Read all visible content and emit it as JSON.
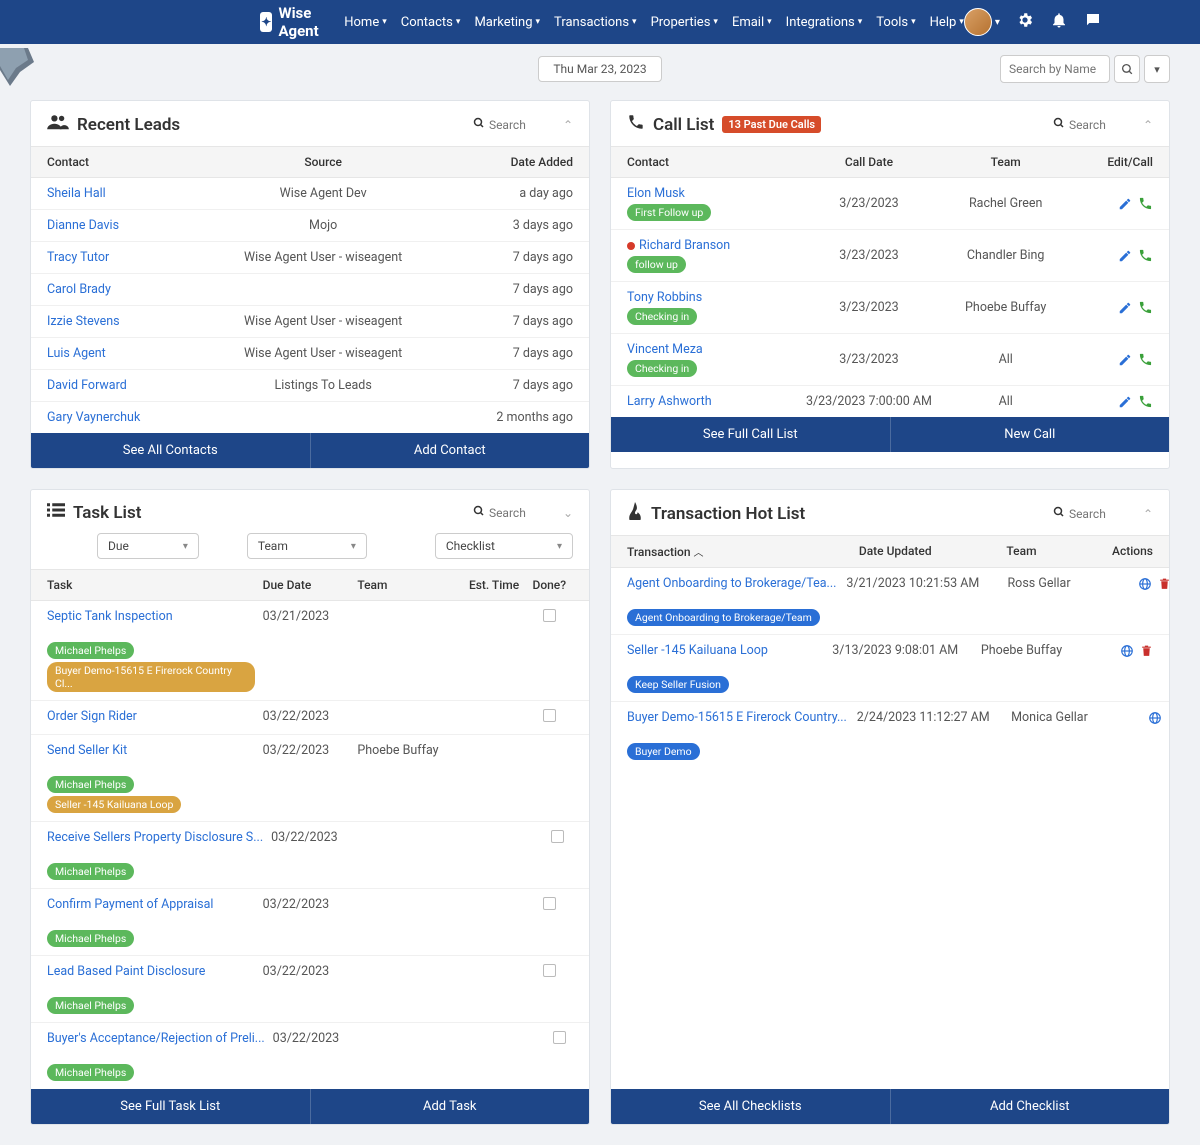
{
  "brand": "Wise Agent",
  "nav": {
    "items": [
      "Home",
      "Contacts",
      "Marketing",
      "Transactions",
      "Properties",
      "Email",
      "Integrations",
      "Tools",
      "Help"
    ]
  },
  "subbar": {
    "date": "Thu Mar 23, 2023",
    "search_placeholder": "Search by Name"
  },
  "panels": {
    "leads": {
      "title": "Recent Leads",
      "search_placeholder": "Search",
      "cols": [
        "Contact",
        "Source",
        "Date Added"
      ],
      "rows": [
        {
          "name": "Sheila Hall",
          "source": "Wise Agent Dev",
          "date": "a day ago"
        },
        {
          "name": "Dianne Davis",
          "source": "Mojo",
          "date": "3 days ago"
        },
        {
          "name": "Tracy Tutor",
          "source": "Wise Agent User - wiseagent",
          "date": "7 days ago"
        },
        {
          "name": "Carol Brady",
          "source": "",
          "date": "7 days ago"
        },
        {
          "name": "Izzie Stevens",
          "source": "Wise Agent User - wiseagent",
          "date": "7 days ago"
        },
        {
          "name": "Luis Agent",
          "source": "Wise Agent User - wiseagent",
          "date": "7 days ago"
        },
        {
          "name": "David Forward",
          "source": "Listings To Leads",
          "date": "7 days ago"
        },
        {
          "name": "Gary Vaynerchuk",
          "source": "",
          "date": "2 months ago"
        }
      ],
      "footer": [
        "See All Contacts",
        "Add Contact"
      ]
    },
    "calls": {
      "title": "Call List",
      "badge": "13 Past Due Calls",
      "search_placeholder": "Search",
      "cols": [
        "Contact",
        "Call Date",
        "Team",
        "Edit/Call"
      ],
      "rows": [
        {
          "name": "Elon Musk",
          "tag": "First Follow up",
          "tag_color": "green",
          "date": "3/23/2023",
          "team": "Rachel Green",
          "dot": false
        },
        {
          "name": "Richard Branson",
          "tag": "follow up",
          "tag_color": "green",
          "date": "3/23/2023",
          "team": "Chandler Bing",
          "dot": true
        },
        {
          "name": "Tony Robbins",
          "tag": "Checking in",
          "tag_color": "green",
          "date": "3/23/2023",
          "team": "Phoebe Buffay",
          "dot": false
        },
        {
          "name": "Vincent Meza",
          "tag": "Checking in",
          "tag_color": "green",
          "date": "3/23/2023",
          "team": "All",
          "dot": false
        },
        {
          "name": "Larry Ashworth",
          "tag": "",
          "date": "3/23/2023 7:00:00 AM",
          "team": "All",
          "dot": false
        }
      ],
      "footer": [
        "See Full Call List",
        "New Call"
      ]
    },
    "tasks": {
      "title": "Task List",
      "search_placeholder": "Search",
      "filters": [
        "Due",
        "Team",
        "Checklist"
      ],
      "cols": [
        "Task",
        "Due Date",
        "Team",
        "Est. Time",
        "Done?"
      ],
      "rows": [
        {
          "task": "Septic Tank Inspection",
          "due": "03/21/2023",
          "team": "",
          "tags": [
            {
              "t": "Michael Phelps",
              "c": "green"
            },
            {
              "t": "Buyer Demo-15615 E Firerock Country Cl...",
              "c": "orange"
            }
          ],
          "checkbox": true
        },
        {
          "task": "Order Sign Rider",
          "due": "03/22/2023",
          "team": "",
          "tags": [],
          "checkbox": true
        },
        {
          "task": "Send Seller Kit",
          "due": "03/22/2023",
          "team": "Phoebe Buffay",
          "tags": [
            {
              "t": "Michael Phelps",
              "c": "green"
            },
            {
              "t": "Seller -145 Kailuana Loop",
              "c": "orange"
            }
          ],
          "checkbox": false
        },
        {
          "task": "Receive Sellers Property Disclosure S...",
          "due": "03/22/2023",
          "team": "",
          "tags": [
            {
              "t": "Michael Phelps",
              "c": "green"
            }
          ],
          "checkbox": true
        },
        {
          "task": "Confirm Payment of Appraisal",
          "due": "03/22/2023",
          "team": "",
          "tags": [
            {
              "t": "Michael Phelps",
              "c": "green"
            }
          ],
          "checkbox": true
        },
        {
          "task": "Lead Based Paint Disclosure",
          "due": "03/22/2023",
          "team": "",
          "tags": [
            {
              "t": "Michael Phelps",
              "c": "green"
            }
          ],
          "checkbox": true
        },
        {
          "task": "Buyer's Acceptance/Rejection of Preli...",
          "due": "03/22/2023",
          "team": "",
          "tags": [
            {
              "t": "Michael Phelps",
              "c": "green"
            }
          ],
          "checkbox": true
        }
      ],
      "footer": [
        "See Full Task List",
        "Add Task"
      ]
    },
    "tx": {
      "title": "Transaction Hot List",
      "search_placeholder": "Search",
      "cols": [
        "Transaction",
        "Date Updated",
        "Team",
        "Actions"
      ],
      "sort_arrow": "︿",
      "rows": [
        {
          "name": "Agent Onboarding to Brokerage/Tea...",
          "tag": "Agent Onboarding to Brokerage/Team",
          "date": "3/21/2023 10:21:53 AM",
          "team": "Ross Gellar"
        },
        {
          "name": "Seller -145 Kailuana Loop",
          "tag": "Keep Seller Fusion",
          "date": "3/13/2023 9:08:01 AM",
          "team": "Phoebe Buffay"
        },
        {
          "name": "Buyer Demo-15615 E Firerock Country...",
          "tag": "Buyer Demo",
          "date": "2/24/2023 11:12:27 AM",
          "team": "Monica Gellar"
        }
      ],
      "footer": [
        "See All Checklists",
        "Add Checklist"
      ]
    }
  },
  "colors": {
    "primary": "#1e4688",
    "link": "#2a6fd6",
    "green": "#5cb85c",
    "orange": "#d9a441",
    "red": "#d64c2a"
  }
}
